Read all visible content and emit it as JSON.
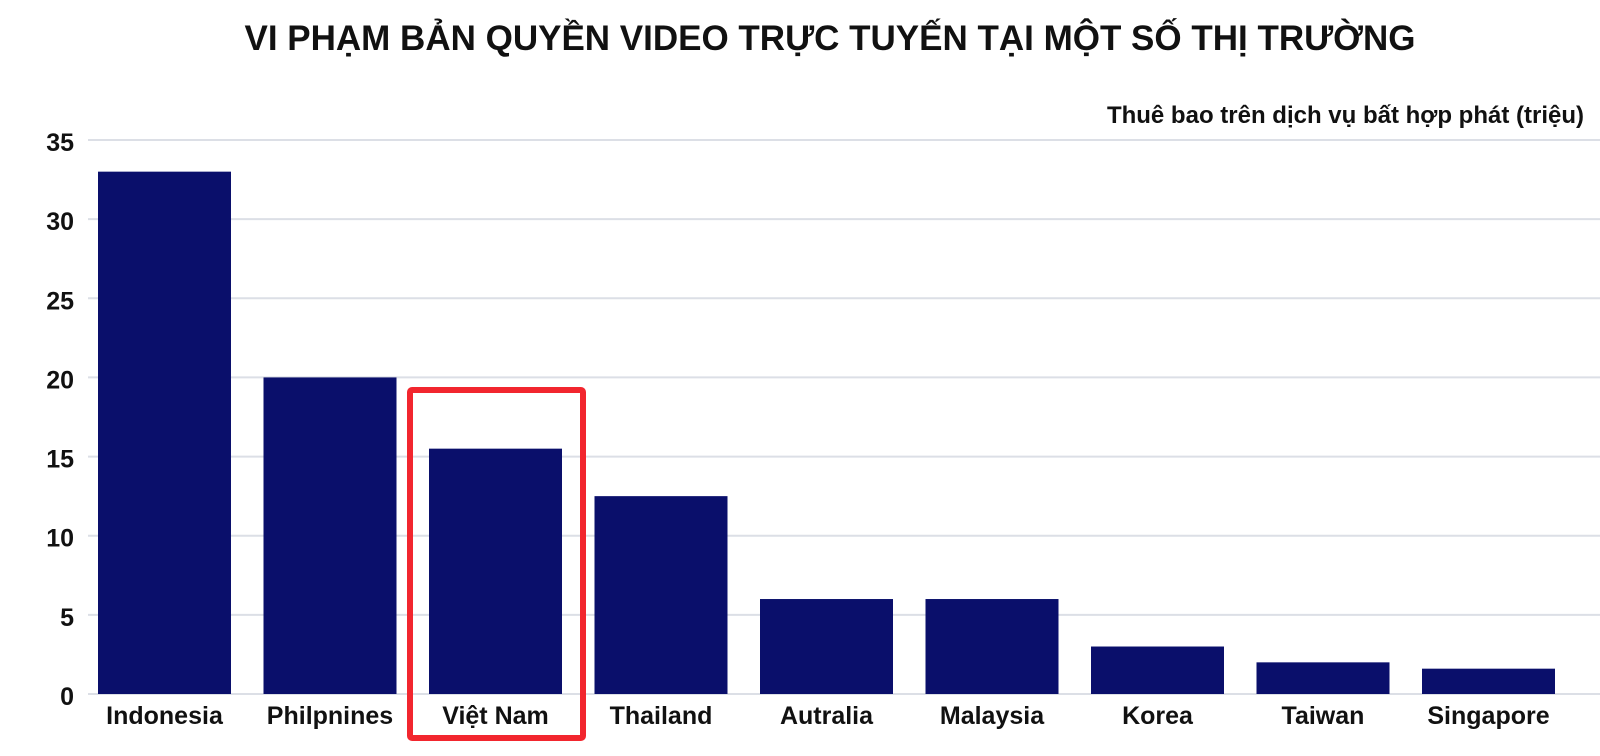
{
  "chart_data": {
    "type": "bar",
    "title": "VI PHẠM BẢN QUYỀN VIDEO TRỰC TUYẾN TẠI MỘT SỐ THỊ TRƯỜNG",
    "unit_label": "Thuê bao trên dịch vụ bất hợp phát (triệu)",
    "categories": [
      "Indonesia",
      "Philpnines",
      "Việt Nam",
      "Thailand",
      "Autralia",
      "Malaysia",
      "Korea",
      "Taiwan",
      "Singapore"
    ],
    "values": [
      33,
      20,
      15.5,
      12.5,
      6,
      6,
      3,
      2,
      1.6
    ],
    "ylim": [
      0,
      35
    ],
    "yticks": [
      "0",
      "5",
      "10",
      "15",
      "20",
      "25",
      "30",
      "35"
    ],
    "grid": true,
    "bar_color": "#0a0f6b",
    "highlight": {
      "category": "Việt Nam",
      "color": "#f2262e"
    }
  }
}
